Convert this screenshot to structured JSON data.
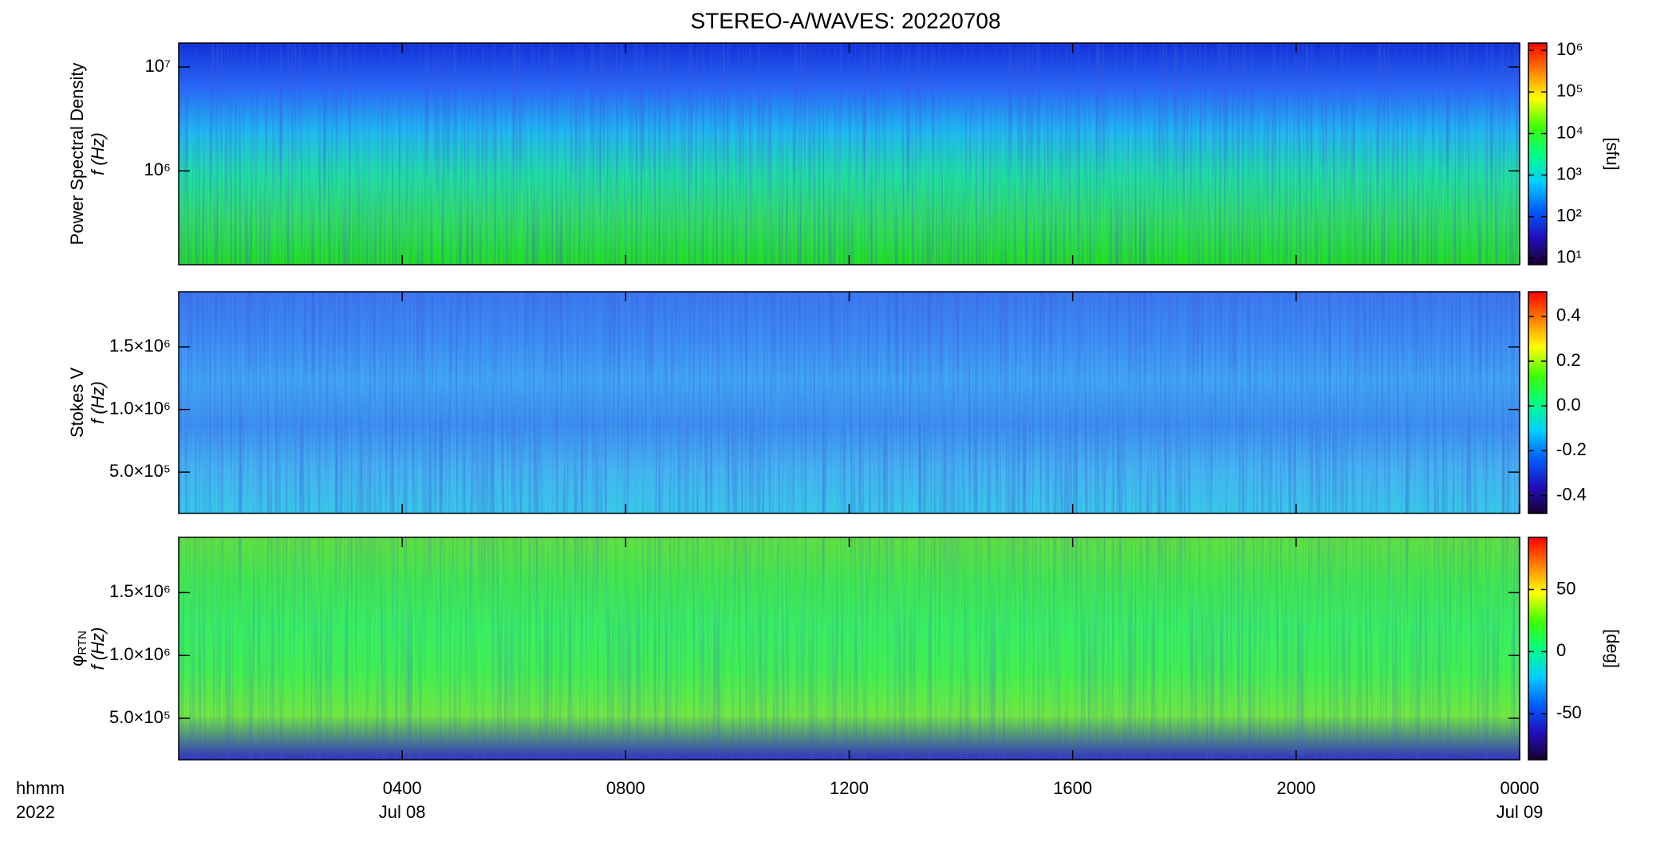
{
  "chart_data": [
    {
      "type": "spectrogram",
      "title": "STEREO-A/WAVES: 20220708",
      "ylabel": [
        "Power Spectral Density",
        "f (Hz)"
      ],
      "ylog": true,
      "ylim": [
        125000,
        17000000
      ],
      "yticks": [
        {
          "value": 1000000,
          "label": "10⁶"
        },
        {
          "value": 10000000,
          "label": "10⁷"
        }
      ],
      "clog": true,
      "clim": [
        7,
        1500000
      ],
      "cticks": [
        {
          "value": 10,
          "label": "10¹"
        },
        {
          "value": 100,
          "label": "10²"
        },
        {
          "value": 1000,
          "label": "10³"
        },
        {
          "value": 10000,
          "label": "10⁴"
        },
        {
          "value": 100000,
          "label": "10⁵"
        },
        {
          "value": 1000000,
          "label": "10⁶"
        }
      ],
      "clabel": "[sfu]",
      "colormap": [
        "#1a0030",
        "#2010c0",
        "#0060ff",
        "#00d0ff",
        "#00ff80",
        "#40ff00",
        "#ffff00",
        "#ff8000",
        "#ff0000"
      ],
      "fill": [
        "#1030d8",
        "#2868f8",
        "#20b8f0",
        "#20e0a0",
        "#30e060",
        "#20e020"
      ]
    },
    {
      "type": "spectrogram",
      "ylabel": [
        "Stokes V",
        "f (Hz)"
      ],
      "ylog": false,
      "ylim": [
        170000,
        1940000
      ],
      "yticks": [
        {
          "value": 500000,
          "label": "5.0×10⁵"
        },
        {
          "value": 1000000,
          "label": "1.0×10⁶"
        },
        {
          "value": 1500000,
          "label": "1.5×10⁶"
        }
      ],
      "clog": false,
      "clim": [
        -0.48,
        0.51
      ],
      "cticks": [
        -0.4,
        -0.2,
        {
          "value": 0,
          "label": "0.0"
        },
        0.2,
        0.4
      ],
      "colormap": [
        "#1a0030",
        "#2010c0",
        "#0060ff",
        "#00d0ff",
        "#00ff80",
        "#40ff00",
        "#ffff00",
        "#ff8000",
        "#ff0000"
      ],
      "fill": [
        "#3a78f0",
        "#3c8cf4",
        "#40a8f4",
        "#3c90f0",
        "#44b4f0",
        "#38c8e8"
      ]
    },
    {
      "type": "spectrogram",
      "ylabel": [
        "φ",
        "f (Hz)"
      ],
      "ylabel_subscript": "RTN",
      "ylog": false,
      "ylim": [
        170000,
        1940000
      ],
      "yticks": [
        {
          "value": 500000,
          "label": "5.0×10⁵"
        },
        {
          "value": 1000000,
          "label": "1.0×10⁶"
        },
        {
          "value": 1500000,
          "label": "1.5×10⁶"
        }
      ],
      "clog": false,
      "clim": [
        -87,
        92
      ],
      "cticks": [
        -50,
        0,
        50
      ],
      "clabel": "[deg]",
      "colormap": [
        "#1a0030",
        "#2010c0",
        "#0060ff",
        "#00d0ff",
        "#00ff80",
        "#40ff00",
        "#ffff00",
        "#ff8000",
        "#ff0000"
      ],
      "fill": [
        "#60e040",
        "#40e850",
        "#38f060",
        "#40f050",
        "#70e840",
        "#3030c0"
      ],
      "xlim": [
        0,
        24
      ],
      "xticks": [
        {
          "value": 4,
          "label": "0400"
        },
        {
          "value": 8,
          "label": "0800"
        },
        {
          "value": 12,
          "label": "1200"
        },
        {
          "value": 16,
          "label": "1600"
        },
        {
          "value": 20,
          "label": "2000"
        },
        {
          "value": 24,
          "label": "0000"
        }
      ],
      "date_labels": [
        {
          "value": 4,
          "label": "Jul 08"
        },
        {
          "value": 24,
          "label": "Jul 09"
        }
      ],
      "xlabel": [
        "hhmm",
        "2022"
      ]
    }
  ]
}
